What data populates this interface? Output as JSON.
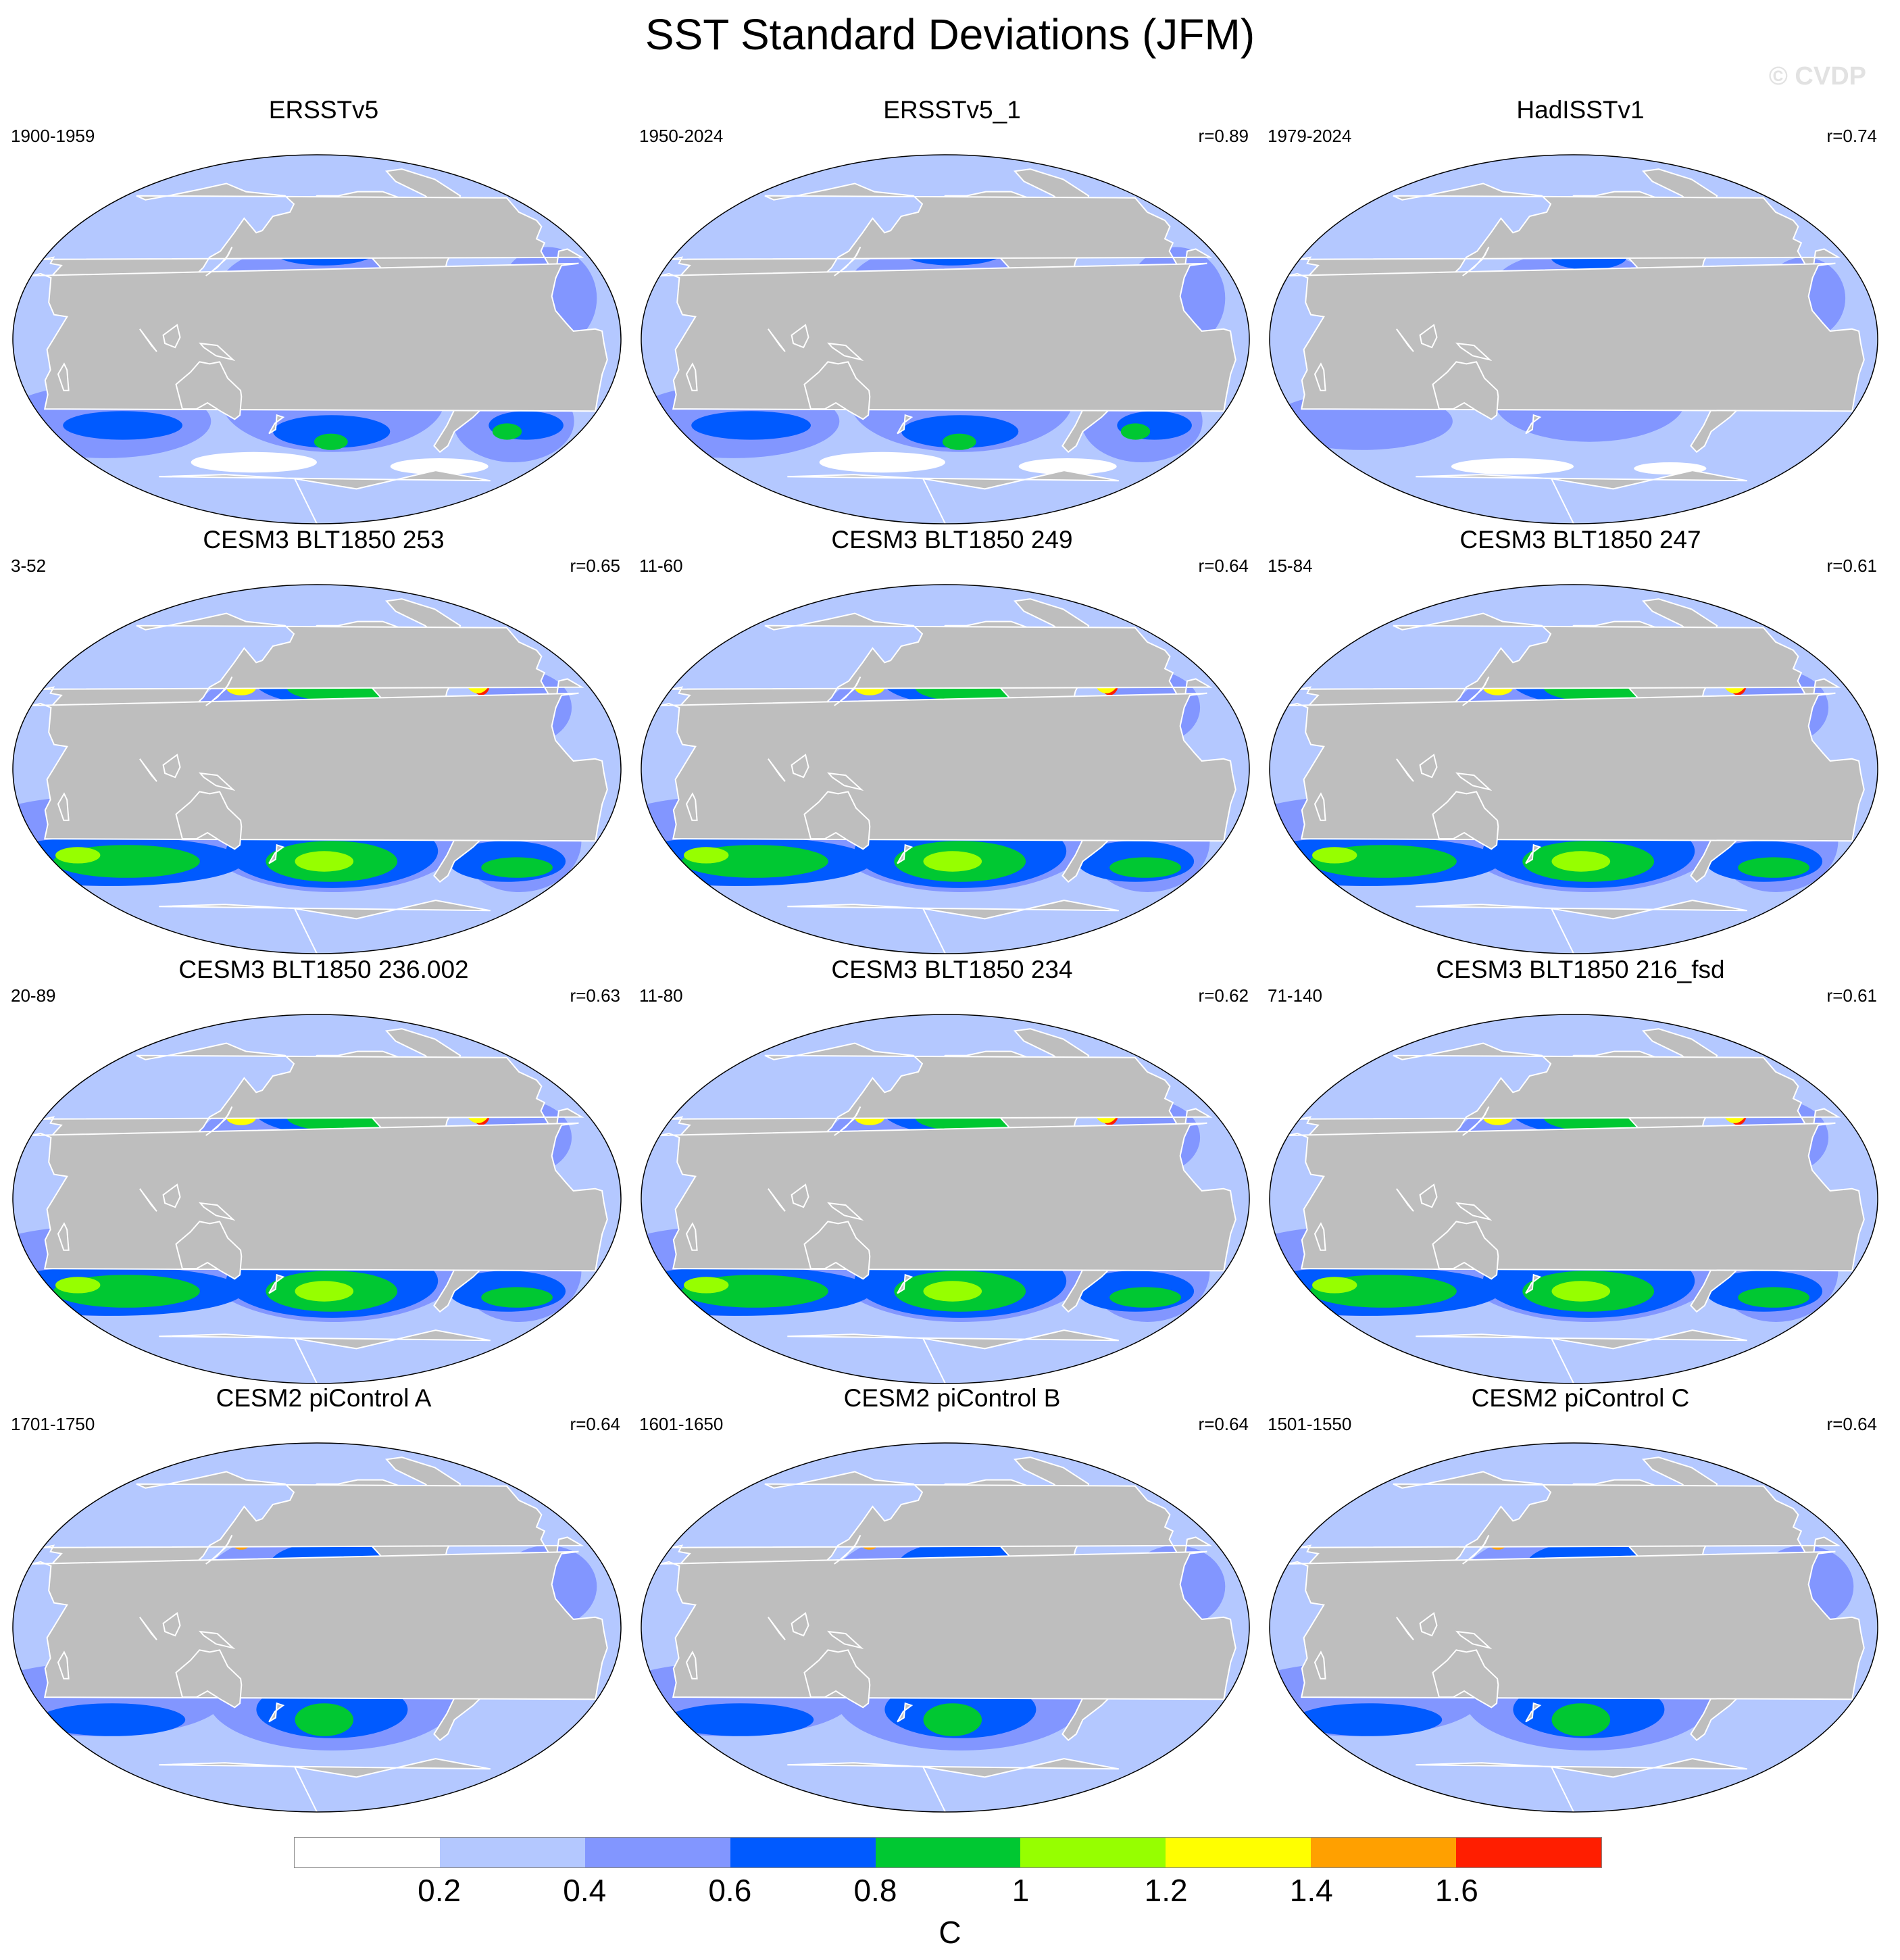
{
  "figure": {
    "title": "SST Standard Deviations (JFM)",
    "watermark": "© CVDP"
  },
  "colors": {
    "ocean_levels": [
      "#ffffff",
      "#b4c8ff",
      "#8296ff",
      "#005aff",
      "#00c832",
      "#96ff00",
      "#ffff00",
      "#ffa000",
      "#ff1e00"
    ],
    "land": "#bebebe",
    "outline": "#000000"
  },
  "panels": [
    {
      "title": "ERSSTv5",
      "left": "1900-1959",
      "right": "",
      "style": "obs"
    },
    {
      "title": "ERSSTv5_1",
      "left": "1950-2024",
      "right": "r=0.89",
      "style": "obs"
    },
    {
      "title": "HadISSTv1",
      "left": "1979-2024",
      "right": "r=0.74",
      "style": "obs_weak"
    },
    {
      "title": "CESM3 BLT1850 253",
      "left": "3-52",
      "right": "r=0.65",
      "style": "cesm3"
    },
    {
      "title": "CESM3 BLT1850 249",
      "left": "11-60",
      "right": "r=0.64",
      "style": "cesm3"
    },
    {
      "title": "CESM3 BLT1850 247",
      "left": "15-84",
      "right": "r=0.61",
      "style": "cesm3"
    },
    {
      "title": "CESM3 BLT1850 236.002",
      "left": "20-89",
      "right": "r=0.63",
      "style": "cesm3"
    },
    {
      "title": "CESM3 BLT1850 234",
      "left": "11-80",
      "right": "r=0.62",
      "style": "cesm3"
    },
    {
      "title": "CESM3 BLT1850 216_fsd",
      "left": "71-140",
      "right": "r=0.61",
      "style": "cesm3"
    },
    {
      "title": "CESM2 piControl A",
      "left": "1701-1750",
      "right": "r=0.64",
      "style": "cesm2"
    },
    {
      "title": "CESM2 piControl B",
      "left": "1601-1650",
      "right": "r=0.64",
      "style": "cesm2"
    },
    {
      "title": "CESM2 piControl C",
      "left": "1501-1550",
      "right": "r=0.64",
      "style": "cesm2"
    }
  ],
  "colorbar": {
    "ticks": [
      "0.2",
      "0.4",
      "0.6",
      "0.8",
      "1",
      "1.2",
      "1.4",
      "1.6"
    ],
    "unit": "C"
  }
}
